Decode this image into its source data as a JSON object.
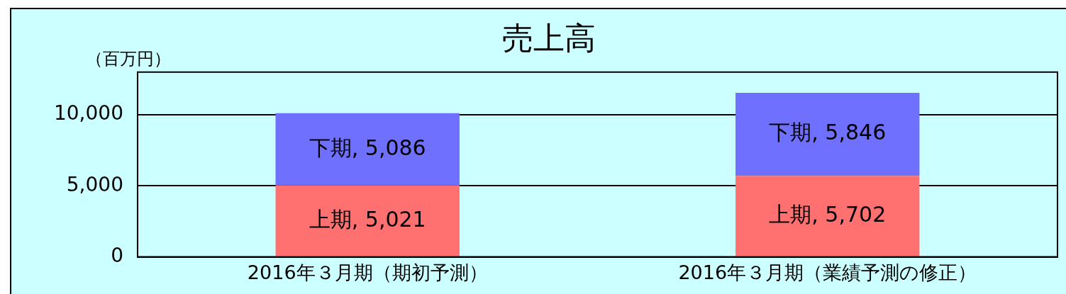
{
  "chart_data": {
    "type": "bar",
    "title": "売上高",
    "ylabel": "（百万円）",
    "categories": [
      "2016年３月期（期初予測）",
      "2016年３月期（業績予測の修正）"
    ],
    "stacked": true,
    "series": [
      {
        "name": "上期",
        "color": "#ff7070",
        "values": [
          5021,
          5702
        ],
        "value_labels": [
          ", 5,021",
          ", 5,702"
        ]
      },
      {
        "name": "下期",
        "color": "#7070ff",
        "values": [
          5086,
          5846
        ],
        "value_labels": [
          ", 5,086",
          ", 5,846"
        ]
      }
    ],
    "ylim": [
      0,
      13000
    ],
    "yticks": [
      {
        "value": 0,
        "label": "0"
      },
      {
        "value": 5000,
        "label": "5,000"
      },
      {
        "value": 10000,
        "label": "10,000"
      }
    ],
    "grid": "y",
    "legend": false
  }
}
